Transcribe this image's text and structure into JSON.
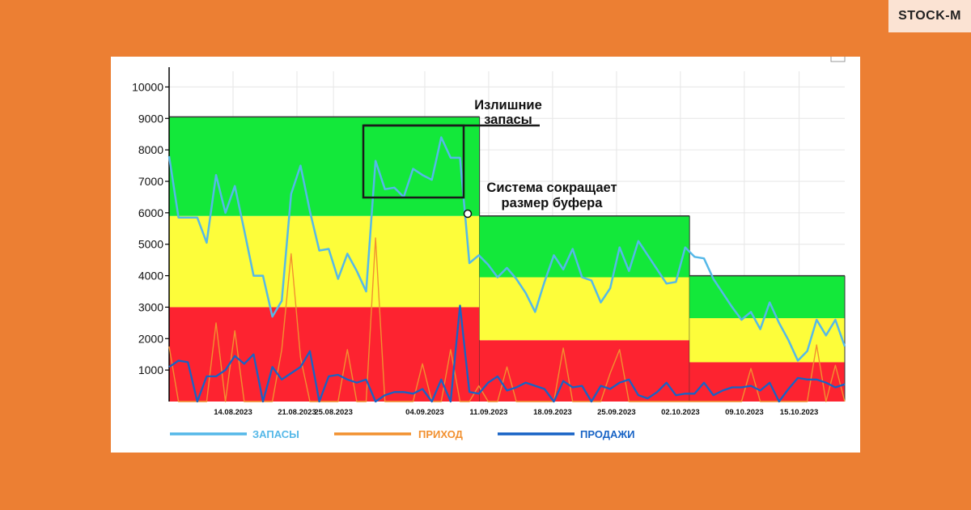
{
  "logo": {
    "text": "STOCK-M"
  },
  "chart_data": {
    "type": "line",
    "xlabel": "",
    "ylabel": "",
    "ylim": [
      0,
      10500
    ],
    "yticks": [
      1000,
      2000,
      3000,
      4000,
      5000,
      6000,
      7000,
      8000,
      9000,
      10000
    ],
    "x_range": [
      "2023-08-07",
      "2023-10-20"
    ],
    "x_tick_labels": [
      "14.08.2023",
      "21.08.2023",
      "25.08.2023",
      "04.09.2023",
      "11.09.2023",
      "18.09.2023",
      "25.09.2023",
      "02.10.2023",
      "09.10.2023",
      "15.10.2023"
    ],
    "grid": true,
    "legend_position": "bottom",
    "colors": {
      "zone_green": "#13e83a",
      "zone_yellow": "#fdfd3a",
      "zone_red": "#fd2330",
      "stock": "#55b8e8",
      "income": "#f2902f",
      "sales": "#1763c5"
    },
    "buffer_zones": [
      {
        "x_from": "2023-08-07",
        "x_to": "2023-09-10",
        "red": [
          0,
          3000
        ],
        "yellow": [
          3000,
          5900
        ],
        "green": [
          5900,
          9050
        ]
      },
      {
        "x_from": "2023-09-10",
        "x_to": "2023-10-03",
        "red": [
          0,
          1950
        ],
        "yellow": [
          1950,
          3950
        ],
        "green": [
          3950,
          5900
        ]
      },
      {
        "x_from": "2023-10-03",
        "x_to": "2023-10-20",
        "red": [
          0,
          1250
        ],
        "yellow": [
          1250,
          2650
        ],
        "green": [
          2650,
          4000
        ]
      }
    ],
    "series": [
      {
        "name": "ЗАПАСЫ",
        "color": "#55b8e8",
        "values": [
          7800,
          5850,
          5850,
          5850,
          5050,
          7200,
          6000,
          6850,
          5450,
          4000,
          4000,
          2700,
          3200,
          6600,
          7500,
          6050,
          4800,
          4850,
          3900,
          4700,
          4150,
          3500,
          7650,
          6750,
          6800,
          6500,
          7400,
          7200,
          7050,
          8400,
          7750,
          7750,
          4400,
          4650,
          4350,
          3950,
          4250,
          3900,
          3450,
          2850,
          3800,
          4650,
          4200,
          4850,
          3950,
          3850,
          3150,
          3600,
          4900,
          4150,
          5100,
          4650,
          4200,
          3750,
          3800,
          4900,
          4600,
          4550,
          3900,
          3450,
          3000,
          2600,
          2850,
          2300,
          3150,
          2500,
          1950,
          1300,
          1600,
          2600,
          2100,
          2600,
          1750
        ]
      },
      {
        "name": "ПРИХОД",
        "color": "#f2902f",
        "values": [
          1750,
          0,
          0,
          0,
          0,
          2500,
          0,
          2250,
          0,
          0,
          0,
          0,
          1650,
          4700,
          1400,
          0,
          0,
          0,
          0,
          1650,
          0,
          0,
          5200,
          0,
          0,
          0,
          0,
          1200,
          0,
          0,
          1650,
          0,
          0,
          500,
          0,
          0,
          1100,
          0,
          0,
          0,
          0,
          0,
          1700,
          0,
          0,
          0,
          0,
          900,
          1650,
          0,
          0,
          0,
          0,
          0,
          0,
          0,
          0,
          0,
          0,
          0,
          0,
          0,
          1050,
          0,
          0,
          0,
          0,
          0,
          0,
          1800,
          0,
          1150,
          0
        ]
      },
      {
        "name": "ПРОДАЖИ",
        "color": "#1763c5",
        "values": [
          1100,
          1300,
          1250,
          0,
          800,
          800,
          1000,
          1450,
          1200,
          1500,
          0,
          1100,
          700,
          900,
          1100,
          1600,
          0,
          800,
          850,
          700,
          600,
          700,
          0,
          200,
          300,
          300,
          250,
          400,
          0,
          700,
          0,
          3050,
          300,
          250,
          600,
          800,
          350,
          450,
          600,
          500,
          400,
          0,
          650,
          450,
          500,
          0,
          500,
          400,
          600,
          700,
          200,
          100,
          300,
          600,
          200,
          250,
          250,
          600,
          200,
          350,
          450,
          450,
          500,
          350,
          600,
          0,
          400,
          750,
          700,
          700,
          600,
          450,
          550
        ]
      }
    ],
    "annotations": [
      {
        "text_lines": [
          "Излишние",
          "запасы"
        ]
      },
      {
        "text_lines": [
          "Система сокращает",
          "размер буфера"
        ]
      }
    ]
  }
}
